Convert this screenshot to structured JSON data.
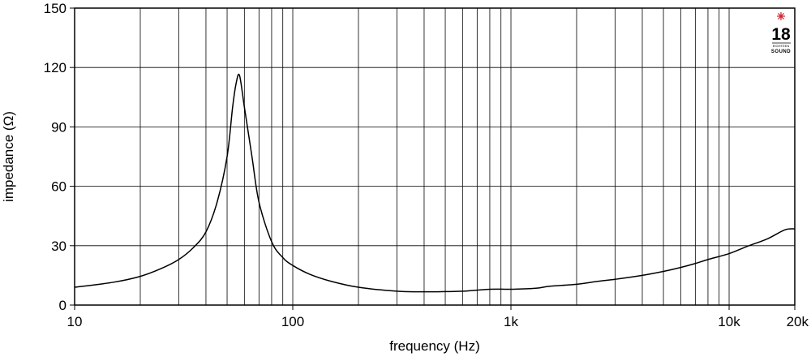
{
  "chart_data": {
    "type": "line",
    "xlabel": "frequency (Hz)",
    "ylabel": "impedance (Ω)",
    "x_scale": "log",
    "xlim": [
      10,
      20000
    ],
    "ylim": [
      0,
      150
    ],
    "x_ticks": [
      10,
      100,
      1000,
      10000,
      20000
    ],
    "x_tick_labels": [
      "10",
      "100",
      "1k",
      "10k",
      "20k"
    ],
    "y_ticks": [
      0,
      30,
      60,
      90,
      120,
      150
    ],
    "y_tick_labels": [
      "0",
      "30",
      "60",
      "90",
      "120",
      "150"
    ],
    "grid": true,
    "series": [
      {
        "color": "#000000",
        "x": [
          10,
          15,
          20,
          25,
          30,
          35,
          40,
          45,
          50,
          53,
          55,
          57,
          60,
          65,
          70,
          80,
          90,
          100,
          120,
          150,
          200,
          300,
          400,
          500,
          600,
          800,
          1000,
          1300,
          1500,
          2000,
          2500,
          3000,
          4000,
          5000,
          6000,
          7000,
          8000,
          10000,
          12000,
          15000,
          18000,
          20000
        ],
        "y": [
          9,
          11.5,
          14.5,
          18.5,
          23,
          29,
          37,
          52,
          75,
          100,
          112,
          116,
          100,
          75,
          52,
          32,
          24,
          20,
          15.5,
          12,
          9,
          7,
          6.7,
          6.8,
          7,
          8,
          8,
          8.5,
          9.5,
          10.5,
          12,
          13,
          15,
          17,
          19,
          21,
          23,
          26,
          29.5,
          33.5,
          38,
          38.5
        ]
      }
    ]
  },
  "logo": {
    "number": "18",
    "small_text": "EIGHTEEN",
    "word": "SOUND",
    "accent_color": "#d0202a"
  }
}
